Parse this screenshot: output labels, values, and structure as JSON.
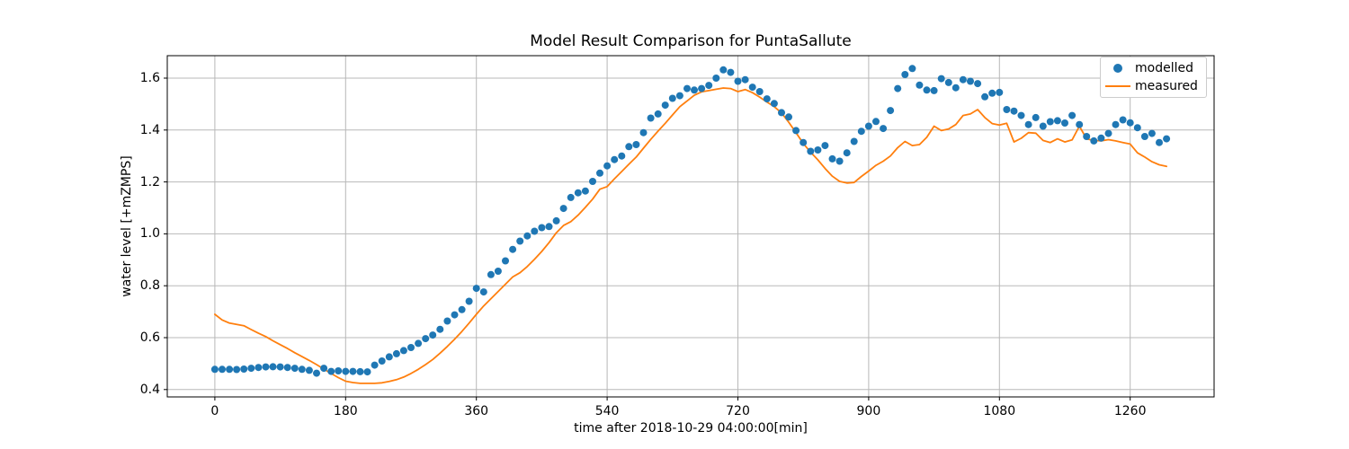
{
  "chart_data": {
    "type": "scatter+line",
    "title": "Model Result Comparison for PuntaSallute",
    "xlabel": "time after 2018-10-29 04:00:00[min]",
    "ylabel": "water level [+mZMPS]",
    "xlim": [
      -65.5,
      1375.5
    ],
    "ylim": [
      0.3716,
      1.6865
    ],
    "grid": true,
    "legend_position": "upper right",
    "colors": {
      "modelled": "#1f77b4",
      "measured": "#ff7f0e",
      "grid": "#b8b8b8",
      "spine": "#000000",
      "background": "#ffffff"
    },
    "x_ticks": [
      0,
      180,
      360,
      540,
      720,
      900,
      1080,
      1260
    ],
    "x_tick_labels": [
      "0",
      "180",
      "360",
      "540",
      "720",
      "900",
      "1080",
      "1260"
    ],
    "y_ticks": [
      0.4,
      0.6,
      0.8,
      1.0,
      1.2,
      1.4,
      1.6
    ],
    "y_tick_labels": [
      "0.4",
      "0.6",
      "0.8",
      "1.0",
      "1.2",
      "1.4",
      "1.6"
    ],
    "series": [
      {
        "name": "modelled",
        "type": "scatter",
        "marker": "circle",
        "color": "#1f77b4",
        "x": [
          0,
          10,
          20,
          30,
          40,
          50,
          60,
          70,
          80,
          90,
          100,
          110,
          120,
          130,
          140,
          150,
          160,
          170,
          180,
          190,
          200,
          210,
          220,
          230,
          240,
          250,
          260,
          270,
          280,
          290,
          300,
          310,
          320,
          330,
          340,
          350,
          360,
          370,
          380,
          390,
          400,
          410,
          420,
          430,
          440,
          450,
          460,
          470,
          480,
          490,
          500,
          510,
          520,
          530,
          540,
          550,
          560,
          570,
          580,
          590,
          600,
          610,
          620,
          630,
          640,
          650,
          660,
          670,
          680,
          690,
          700,
          710,
          720,
          730,
          740,
          750,
          760,
          770,
          780,
          790,
          800,
          810,
          820,
          830,
          840,
          850,
          860,
          870,
          880,
          890,
          900,
          910,
          920,
          930,
          940,
          950,
          960,
          970,
          980,
          990,
          1000,
          1010,
          1020,
          1030,
          1040,
          1050,
          1060,
          1070,
          1080,
          1090,
          1100,
          1110,
          1120,
          1130,
          1140,
          1150,
          1160,
          1170,
          1180,
          1190,
          1200,
          1210,
          1220,
          1230,
          1240,
          1250,
          1260,
          1270,
          1280,
          1290,
          1300,
          1310
        ],
        "y": [
          0.478,
          0.478,
          0.478,
          0.477,
          0.479,
          0.482,
          0.485,
          0.487,
          0.488,
          0.487,
          0.485,
          0.482,
          0.478,
          0.474,
          0.463,
          0.482,
          0.47,
          0.472,
          0.47,
          0.47,
          0.469,
          0.468,
          0.494,
          0.51,
          0.526,
          0.538,
          0.55,
          0.562,
          0.578,
          0.596,
          0.61,
          0.632,
          0.664,
          0.688,
          0.708,
          0.74,
          0.79,
          0.776,
          0.843,
          0.856,
          0.896,
          0.94,
          0.972,
          0.992,
          1.01,
          1.024,
          1.028,
          1.05,
          1.098,
          1.14,
          1.158,
          1.165,
          1.202,
          1.234,
          1.262,
          1.286,
          1.3,
          1.336,
          1.344,
          1.39,
          1.446,
          1.462,
          1.496,
          1.522,
          1.532,
          1.56,
          1.554,
          1.56,
          1.572,
          1.6,
          1.632,
          1.622,
          1.588,
          1.594,
          1.565,
          1.548,
          1.52,
          1.502,
          1.467,
          1.45,
          1.398,
          1.352,
          1.318,
          1.323,
          1.34,
          1.289,
          1.28,
          1.312,
          1.356,
          1.395,
          1.415,
          1.433,
          1.406,
          1.475,
          1.56,
          1.614,
          1.637,
          1.573,
          1.554,
          1.552,
          1.598,
          1.583,
          1.563,
          1.594,
          1.588,
          1.579,
          1.528,
          1.542,
          1.545,
          1.479,
          1.473,
          1.456,
          1.421,
          1.448,
          1.415,
          1.432,
          1.436,
          1.427,
          1.456,
          1.421,
          1.375,
          1.358,
          1.369,
          1.387,
          1.421,
          1.439,
          1.428,
          1.409,
          1.375,
          1.387,
          1.352,
          1.366
        ]
      },
      {
        "name": "measured",
        "type": "line",
        "color": "#ff7f0e",
        "x": [
          0,
          10,
          20,
          30,
          40,
          50,
          60,
          70,
          80,
          90,
          100,
          110,
          120,
          130,
          140,
          150,
          160,
          170,
          180,
          190,
          200,
          210,
          220,
          230,
          240,
          250,
          260,
          270,
          280,
          290,
          300,
          310,
          320,
          330,
          340,
          350,
          360,
          370,
          380,
          390,
          400,
          410,
          420,
          430,
          440,
          450,
          460,
          470,
          480,
          490,
          500,
          510,
          520,
          530,
          540,
          550,
          560,
          570,
          580,
          590,
          600,
          610,
          620,
          630,
          640,
          650,
          660,
          670,
          680,
          690,
          700,
          710,
          720,
          730,
          740,
          750,
          760,
          770,
          780,
          790,
          800,
          810,
          820,
          830,
          840,
          850,
          860,
          870,
          880,
          890,
          900,
          910,
          920,
          930,
          940,
          950,
          960,
          970,
          980,
          990,
          1000,
          1010,
          1020,
          1030,
          1040,
          1050,
          1060,
          1070,
          1080,
          1090,
          1100,
          1110,
          1120,
          1130,
          1140,
          1150,
          1160,
          1170,
          1180,
          1190,
          1200,
          1210,
          1220,
          1230,
          1240,
          1250,
          1260,
          1270,
          1280,
          1290,
          1300,
          1310
        ],
        "y": [
          0.69,
          0.668,
          0.656,
          0.651,
          0.646,
          0.631,
          0.617,
          0.604,
          0.588,
          0.573,
          0.558,
          0.542,
          0.527,
          0.512,
          0.496,
          0.479,
          0.462,
          0.446,
          0.432,
          0.427,
          0.424,
          0.424,
          0.424,
          0.426,
          0.431,
          0.438,
          0.448,
          0.462,
          0.478,
          0.496,
          0.516,
          0.54,
          0.566,
          0.594,
          0.624,
          0.656,
          0.69,
          0.722,
          0.75,
          0.778,
          0.806,
          0.834,
          0.85,
          0.874,
          0.902,
          0.932,
          0.966,
          1.004,
          1.032,
          1.047,
          1.072,
          1.102,
          1.134,
          1.172,
          1.182,
          1.212,
          1.24,
          1.268,
          1.296,
          1.33,
          1.364,
          1.396,
          1.426,
          1.458,
          1.49,
          1.512,
          1.534,
          1.547,
          1.552,
          1.557,
          1.562,
          1.56,
          1.548,
          1.556,
          1.544,
          1.527,
          1.508,
          1.49,
          1.466,
          1.43,
          1.39,
          1.348,
          1.315,
          1.285,
          1.252,
          1.222,
          1.202,
          1.196,
          1.198,
          1.221,
          1.242,
          1.264,
          1.28,
          1.3,
          1.332,
          1.356,
          1.34,
          1.344,
          1.372,
          1.415,
          1.398,
          1.404,
          1.421,
          1.456,
          1.462,
          1.479,
          1.448,
          1.425,
          1.419,
          1.426,
          1.354,
          1.368,
          1.39,
          1.388,
          1.36,
          1.352,
          1.366,
          1.354,
          1.362,
          1.415,
          1.366,
          1.36,
          1.358,
          1.363,
          1.358,
          1.352,
          1.346,
          1.312,
          1.296,
          1.278,
          1.266,
          1.26
        ]
      }
    ]
  }
}
